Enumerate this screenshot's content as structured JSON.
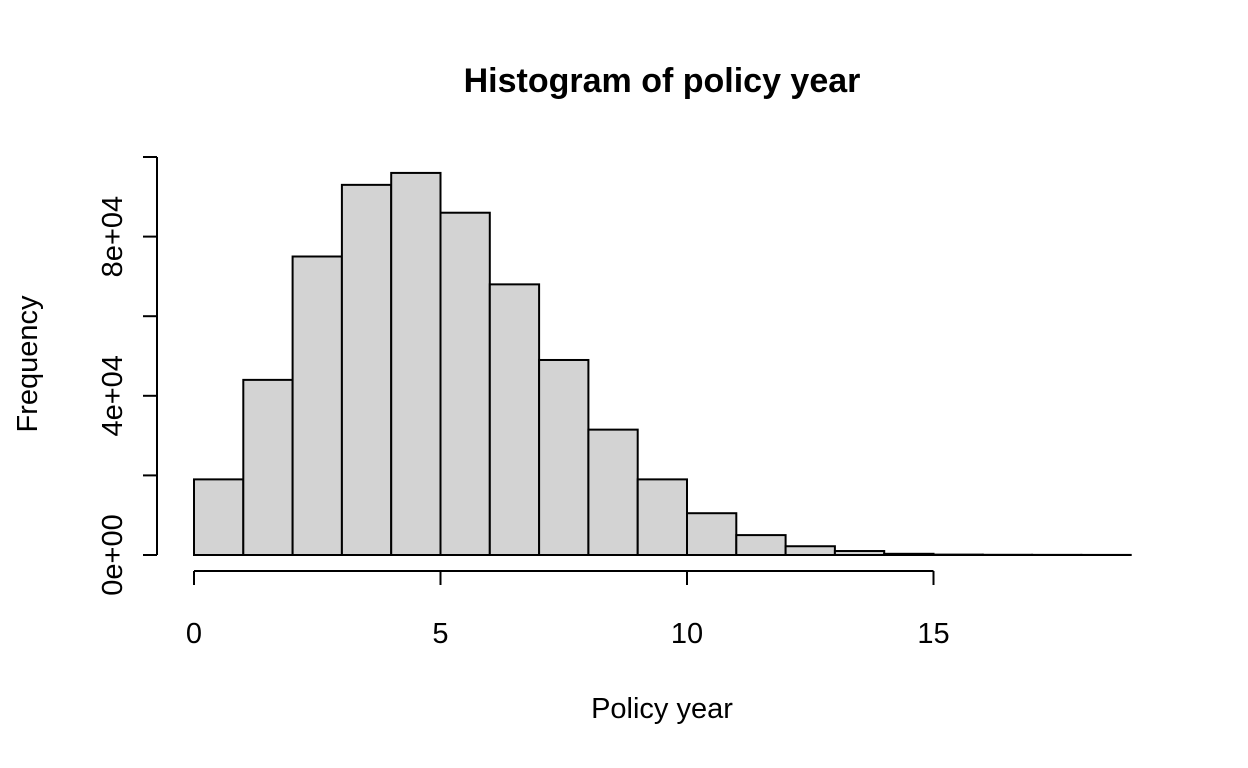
{
  "chart_data": {
    "type": "histogram",
    "title": "Histogram of policy year",
    "xlabel": "Policy year",
    "ylabel": "Frequency",
    "bin_edges": [
      0,
      1,
      2,
      3,
      4,
      5,
      6,
      7,
      8,
      9,
      10,
      11,
      12,
      13,
      14,
      15,
      16,
      17,
      18,
      19
    ],
    "values": [
      19000,
      44000,
      75000,
      93000,
      96000,
      86000,
      68000,
      49000,
      31500,
      19000,
      10500,
      5000,
      2200,
      1000,
      300,
      100,
      50,
      30,
      20
    ],
    "xlim": [
      0,
      19
    ],
    "ylim": [
      0,
      100000
    ],
    "x_ticks": [
      0,
      5,
      10,
      15
    ],
    "x_tick_labels": [
      "0",
      "5",
      "10",
      "15"
    ],
    "y_ticks": [
      0,
      20000,
      40000,
      60000,
      80000,
      100000
    ],
    "y_tick_labels": [
      "0e+00",
      "",
      "4e+04",
      "",
      "8e+04",
      ""
    ],
    "grid": false,
    "legend": "none",
    "colors": {
      "bar_fill": "#d3d3d3",
      "bar_stroke": "#000000"
    }
  }
}
